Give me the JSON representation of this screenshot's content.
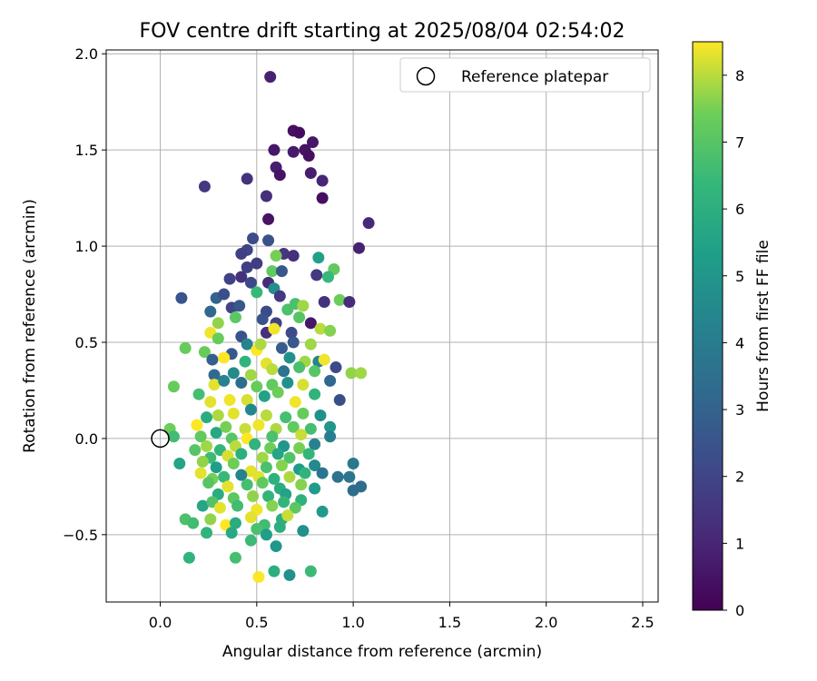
{
  "chart_data": {
    "type": "scatter",
    "title": "FOV centre drift starting at 2025/08/04 02:54:02",
    "xlabel": "Angular distance from reference (arcmin)",
    "ylabel": "Rotation from reference (arcmin)",
    "xlim": [
      -0.28,
      2.58
    ],
    "ylim": [
      -0.85,
      2.02
    ],
    "xticks": [
      0.0,
      0.5,
      1.0,
      1.5,
      2.0,
      2.5
    ],
    "xtick_labels": [
      "0.0",
      "0.5",
      "1.0",
      "1.5",
      "2.0",
      "2.5"
    ],
    "yticks": [
      -0.5,
      0.0,
      0.5,
      1.0,
      1.5,
      2.0
    ],
    "ytick_labels": [
      "−0.5",
      "0.0",
      "0.5",
      "1.0",
      "1.5",
      "2.0"
    ],
    "grid": true,
    "legend": {
      "position": "top-right",
      "entries": [
        "Reference platepar"
      ]
    },
    "reference_point": {
      "x": 0.0,
      "y": 0.0
    },
    "colorbar": {
      "label": "Hours from first FF file",
      "colormap": "viridis",
      "range": [
        0,
        8.5
      ],
      "ticks": [
        0,
        1,
        2,
        3,
        4,
        5,
        6,
        7,
        8
      ],
      "tick_labels": [
        "0",
        "1",
        "2",
        "3",
        "4",
        "5",
        "6",
        "7",
        "8"
      ]
    },
    "series": [
      {
        "points": [
          [
            0.57,
            1.88,
            0.9
          ],
          [
            0.69,
            1.6,
            0.4
          ],
          [
            0.72,
            1.59,
            0.3
          ],
          [
            0.59,
            1.5,
            0.6
          ],
          [
            0.69,
            1.49,
            0.7
          ],
          [
            0.75,
            1.5,
            0.5
          ],
          [
            0.79,
            1.54,
            0.6
          ],
          [
            0.77,
            1.47,
            0.4
          ],
          [
            0.6,
            1.41,
            0.8
          ],
          [
            0.62,
            1.37,
            0.5
          ],
          [
            0.78,
            1.38,
            0.8
          ],
          [
            0.84,
            1.34,
            1.0
          ],
          [
            0.45,
            1.35,
            1.4
          ],
          [
            0.23,
            1.31,
            1.6
          ],
          [
            0.55,
            1.26,
            1.3
          ],
          [
            0.84,
            1.25,
            0.4
          ],
          [
            0.56,
            1.14,
            0.5
          ],
          [
            1.08,
            1.12,
            1.1
          ],
          [
            0.48,
            1.04,
            2.2
          ],
          [
            0.56,
            1.03,
            2.4
          ],
          [
            1.03,
            0.99,
            0.9
          ],
          [
            0.45,
            0.98,
            2.0
          ],
          [
            0.42,
            0.96,
            1.8
          ],
          [
            0.64,
            0.96,
            1.5
          ],
          [
            0.69,
            0.95,
            1.3
          ],
          [
            0.6,
            0.95,
            7.5
          ],
          [
            0.82,
            0.94,
            5.4
          ],
          [
            0.5,
            0.91,
            1.7
          ],
          [
            0.45,
            0.89,
            1.8
          ],
          [
            0.58,
            0.87,
            7.2
          ],
          [
            0.63,
            0.87,
            2.6
          ],
          [
            0.9,
            0.88,
            7.2
          ],
          [
            0.81,
            0.85,
            1.6
          ],
          [
            0.87,
            0.84,
            6.4
          ],
          [
            0.36,
            0.83,
            1.9
          ],
          [
            0.42,
            0.84,
            1.4
          ],
          [
            0.47,
            0.81,
            2.1
          ],
          [
            0.56,
            0.81,
            1.2
          ],
          [
            0.85,
            0.71,
            1.4
          ],
          [
            0.11,
            0.73,
            2.5
          ],
          [
            0.29,
            0.73,
            3.0
          ],
          [
            0.33,
            0.75,
            2.3
          ],
          [
            0.5,
            0.76,
            6.4
          ],
          [
            0.59,
            0.78,
            4.7
          ],
          [
            0.62,
            0.74,
            1.6
          ],
          [
            0.7,
            0.7,
            6.8
          ],
          [
            0.93,
            0.72,
            7.4
          ],
          [
            0.98,
            0.71,
            1.2
          ],
          [
            0.26,
            0.66,
            3.2
          ],
          [
            0.37,
            0.68,
            2.0
          ],
          [
            0.41,
            0.69,
            2.6
          ],
          [
            0.55,
            0.66,
            2.2
          ],
          [
            0.66,
            0.67,
            6.8
          ],
          [
            0.74,
            0.69,
            7.8
          ],
          [
            0.39,
            0.63,
            7.1
          ],
          [
            0.3,
            0.6,
            7.7
          ],
          [
            0.53,
            0.62,
            2.5
          ],
          [
            0.6,
            0.6,
            1.9
          ],
          [
            0.72,
            0.63,
            7.0
          ],
          [
            0.78,
            0.6,
            0.6
          ],
          [
            0.83,
            0.57,
            8.0
          ],
          [
            0.26,
            0.55,
            8.4
          ],
          [
            0.3,
            0.52,
            7.3
          ],
          [
            0.42,
            0.53,
            2.5
          ],
          [
            0.55,
            0.55,
            1.3
          ],
          [
            0.59,
            0.57,
            8.4
          ],
          [
            0.68,
            0.55,
            2.2
          ],
          [
            0.88,
            0.56,
            7.6
          ],
          [
            0.13,
            0.47,
            7.3
          ],
          [
            0.23,
            0.45,
            7.3
          ],
          [
            0.37,
            0.44,
            2.7
          ],
          [
            0.45,
            0.49,
            4.3
          ],
          [
            0.5,
            0.46,
            8.5
          ],
          [
            0.52,
            0.49,
            7.9
          ],
          [
            0.63,
            0.47,
            2.8
          ],
          [
            0.69,
            0.5,
            2.6
          ],
          [
            0.78,
            0.49,
            7.8
          ],
          [
            0.27,
            0.41,
            2.9
          ],
          [
            0.33,
            0.42,
            8.5
          ],
          [
            0.44,
            0.4,
            6.2
          ],
          [
            0.55,
            0.39,
            8.3
          ],
          [
            0.67,
            0.42,
            4.8
          ],
          [
            0.75,
            0.4,
            7.8
          ],
          [
            0.82,
            0.4,
            4.4
          ],
          [
            0.85,
            0.41,
            8.4
          ],
          [
            0.28,
            0.33,
            3.3
          ],
          [
            0.38,
            0.34,
            4.6
          ],
          [
            0.47,
            0.33,
            7.8
          ],
          [
            0.58,
            0.36,
            8.0
          ],
          [
            0.64,
            0.35,
            3.6
          ],
          [
            0.72,
            0.37,
            6.8
          ],
          [
            0.8,
            0.35,
            7.0
          ],
          [
            0.91,
            0.37,
            2.2
          ],
          [
            0.99,
            0.34,
            7.7
          ],
          [
            1.04,
            0.34,
            7.8
          ],
          [
            0.07,
            0.27,
            7.3
          ],
          [
            0.28,
            0.28,
            8.3
          ],
          [
            0.33,
            0.3,
            4.2
          ],
          [
            0.42,
            0.29,
            3.4
          ],
          [
            0.5,
            0.27,
            7.3
          ],
          [
            0.58,
            0.28,
            7.2
          ],
          [
            0.66,
            0.29,
            4.8
          ],
          [
            0.74,
            0.28,
            8.2
          ],
          [
            0.88,
            0.3,
            3.2
          ],
          [
            0.2,
            0.23,
            6.7
          ],
          [
            0.26,
            0.19,
            8.3
          ],
          [
            0.36,
            0.2,
            8.4
          ],
          [
            0.45,
            0.2,
            8.2
          ],
          [
            0.54,
            0.22,
            5.5
          ],
          [
            0.61,
            0.24,
            7.4
          ],
          [
            0.7,
            0.19,
            8.4
          ],
          [
            0.8,
            0.23,
            6.2
          ],
          [
            0.93,
            0.2,
            2.3
          ],
          [
            0.24,
            0.11,
            5.9
          ],
          [
            0.3,
            0.12,
            7.9
          ],
          [
            0.38,
            0.13,
            8.3
          ],
          [
            0.47,
            0.15,
            4.4
          ],
          [
            0.55,
            0.12,
            8.0
          ],
          [
            0.65,
            0.11,
            6.7
          ],
          [
            0.74,
            0.13,
            7.3
          ],
          [
            0.83,
            0.12,
            4.8
          ],
          [
            0.05,
            0.05,
            7.4
          ],
          [
            0.19,
            0.07,
            8.5
          ],
          [
            0.29,
            0.03,
            5.7
          ],
          [
            0.34,
            0.06,
            7.5
          ],
          [
            0.44,
            0.05,
            8.1
          ],
          [
            0.51,
            0.07,
            8.4
          ],
          [
            0.6,
            0.05,
            7.9
          ],
          [
            0.69,
            0.06,
            7.2
          ],
          [
            0.78,
            0.05,
            6.7
          ],
          [
            0.88,
            0.06,
            5.0
          ],
          [
            0.07,
            0.01,
            6.6
          ],
          [
            0.21,
            0.01,
            7.2
          ],
          [
            0.37,
            0.0,
            7.0
          ],
          [
            0.45,
            0.0,
            8.5
          ],
          [
            0.58,
            0.01,
            6.8
          ],
          [
            0.73,
            0.02,
            8.1
          ],
          [
            0.88,
            0.01,
            4.1
          ],
          [
            0.24,
            -0.04,
            7.8
          ],
          [
            0.31,
            -0.06,
            6.3
          ],
          [
            0.39,
            -0.04,
            8.0
          ],
          [
            0.49,
            -0.03,
            6.2
          ],
          [
            0.57,
            -0.05,
            7.4
          ],
          [
            0.64,
            -0.04,
            5.0
          ],
          [
            0.72,
            -0.05,
            7.5
          ],
          [
            0.8,
            -0.03,
            4.3
          ],
          [
            0.18,
            -0.06,
            7.0
          ],
          [
            0.26,
            -0.1,
            6.5
          ],
          [
            0.35,
            -0.09,
            8.2
          ],
          [
            0.42,
            -0.08,
            6.0
          ],
          [
            0.53,
            -0.1,
            7.8
          ],
          [
            0.61,
            -0.08,
            5.6
          ],
          [
            0.67,
            -0.1,
            6.9
          ],
          [
            0.77,
            -0.08,
            6.3
          ],
          [
            0.1,
            -0.13,
            5.6
          ],
          [
            0.22,
            -0.12,
            7.7
          ],
          [
            0.29,
            -0.15,
            5.3
          ],
          [
            0.38,
            -0.13,
            7.4
          ],
          [
            0.47,
            -0.17,
            8.3
          ],
          [
            0.55,
            -0.15,
            6.8
          ],
          [
            0.63,
            -0.14,
            7.6
          ],
          [
            0.72,
            -0.16,
            5.2
          ],
          [
            0.8,
            -0.14,
            4.5
          ],
          [
            0.92,
            -0.2,
            3.6
          ],
          [
            1.0,
            -0.13,
            3.8
          ],
          [
            0.21,
            -0.18,
            8.3
          ],
          [
            0.27,
            -0.21,
            7.5
          ],
          [
            0.33,
            -0.2,
            6.4
          ],
          [
            0.42,
            -0.19,
            4.3
          ],
          [
            0.51,
            -0.2,
            8.3
          ],
          [
            0.59,
            -0.21,
            6.1
          ],
          [
            0.67,
            -0.2,
            7.9
          ],
          [
            0.75,
            -0.18,
            6.2
          ],
          [
            0.84,
            -0.18,
            3.7
          ],
          [
            0.98,
            -0.2,
            3.7
          ],
          [
            0.25,
            -0.23,
            7.0
          ],
          [
            0.35,
            -0.25,
            8.3
          ],
          [
            0.45,
            -0.24,
            6.7
          ],
          [
            0.53,
            -0.23,
            7.2
          ],
          [
            0.62,
            -0.26,
            5.9
          ],
          [
            0.73,
            -0.24,
            7.6
          ],
          [
            0.8,
            -0.26,
            5.2
          ],
          [
            1.0,
            -0.27,
            3.4
          ],
          [
            1.04,
            -0.25,
            3.4
          ],
          [
            0.3,
            -0.29,
            5.9
          ],
          [
            0.38,
            -0.31,
            7.1
          ],
          [
            0.48,
            -0.3,
            7.7
          ],
          [
            0.56,
            -0.3,
            6.3
          ],
          [
            0.65,
            -0.29,
            5.5
          ],
          [
            0.73,
            -0.32,
            6.1
          ],
          [
            0.22,
            -0.35,
            5.6
          ],
          [
            0.27,
            -0.33,
            6.9
          ],
          [
            0.31,
            -0.36,
            8.3
          ],
          [
            0.4,
            -0.35,
            6.6
          ],
          [
            0.5,
            -0.37,
            8.4
          ],
          [
            0.58,
            -0.35,
            7.6
          ],
          [
            0.64,
            -0.33,
            6.3
          ],
          [
            0.7,
            -0.36,
            7.1
          ],
          [
            0.84,
            -0.38,
            5.2
          ],
          [
            0.13,
            -0.42,
            6.8
          ],
          [
            0.17,
            -0.44,
            6.6
          ],
          [
            0.26,
            -0.42,
            7.7
          ],
          [
            0.34,
            -0.45,
            8.5
          ],
          [
            0.39,
            -0.44,
            5.9
          ],
          [
            0.47,
            -0.41,
            8.3
          ],
          [
            0.54,
            -0.45,
            6.6
          ],
          [
            0.63,
            -0.42,
            6.0
          ],
          [
            0.66,
            -0.4,
            8.1
          ],
          [
            0.24,
            -0.49,
            6.2
          ],
          [
            0.37,
            -0.49,
            5.8
          ],
          [
            0.5,
            -0.47,
            6.8
          ],
          [
            0.55,
            -0.5,
            5.3
          ],
          [
            0.62,
            -0.46,
            6.0
          ],
          [
            0.74,
            -0.48,
            4.8
          ],
          [
            0.47,
            -0.53,
            6.5
          ],
          [
            0.6,
            -0.56,
            5.0
          ],
          [
            0.15,
            -0.62,
            6.2
          ],
          [
            0.39,
            -0.62,
            6.7
          ],
          [
            0.51,
            -0.72,
            8.5
          ],
          [
            0.59,
            -0.69,
            6.0
          ],
          [
            0.67,
            -0.71,
            4.8
          ],
          [
            0.78,
            -0.69,
            6.5
          ]
        ]
      }
    ]
  }
}
